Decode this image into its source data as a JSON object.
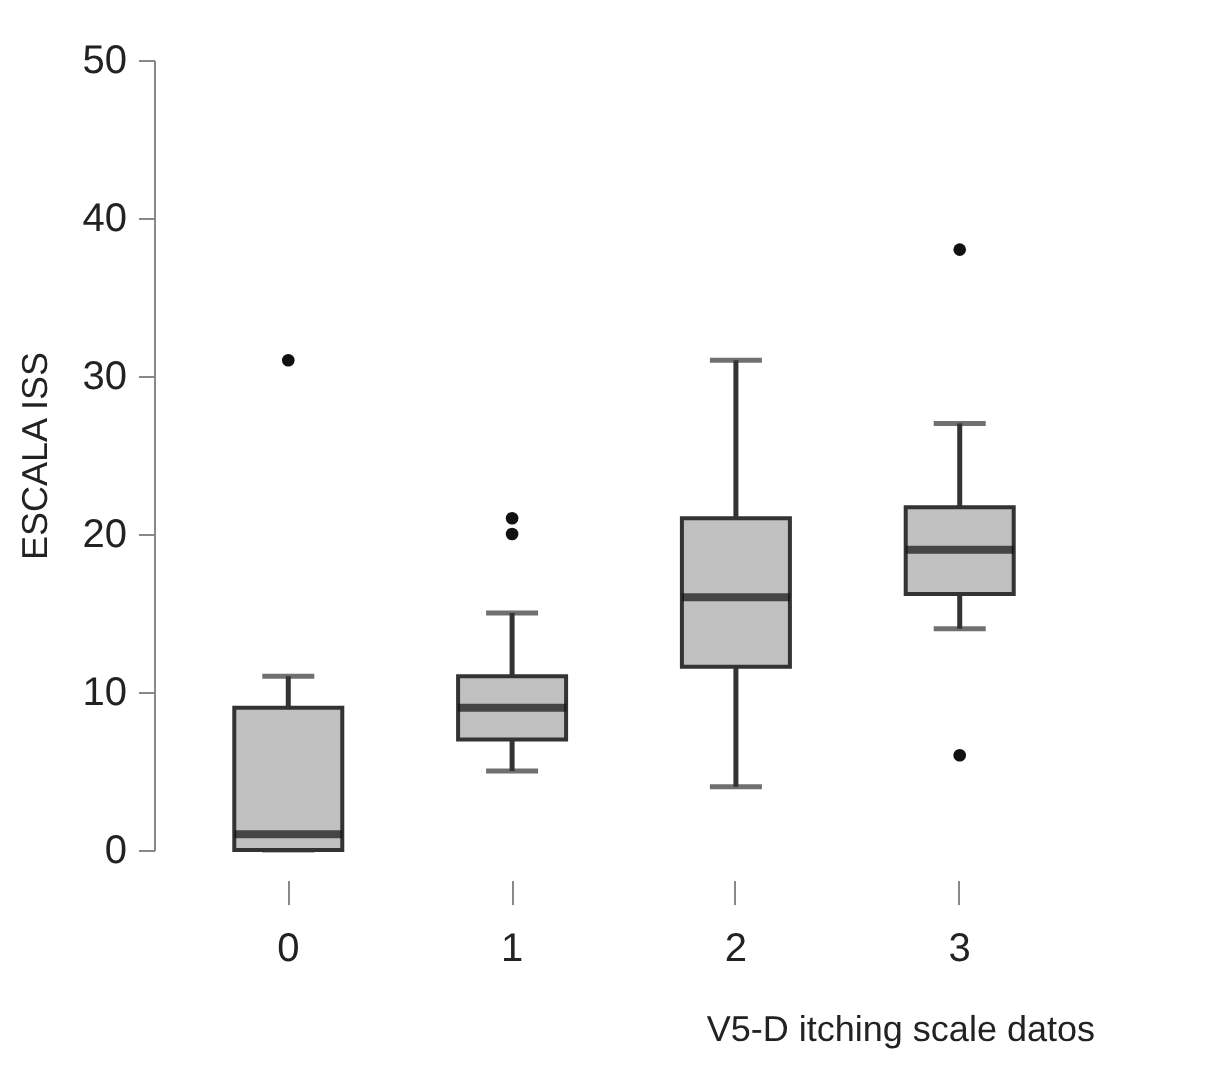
{
  "chart_data": {
    "type": "box",
    "xlabel": "V5-D itching scale datos",
    "ylabel": "ESCALA ISS",
    "categories": [
      "0",
      "1",
      "2",
      "3"
    ],
    "boxes": [
      {
        "low": 0,
        "q1": 0,
        "median": 1,
        "q3": 9,
        "high": 11,
        "outliers": [
          31
        ]
      },
      {
        "low": 5,
        "q1": 7,
        "median": 9,
        "q3": 11,
        "high": 15,
        "outliers": [
          20,
          21
        ]
      },
      {
        "low": 4,
        "q1": 11.6,
        "median": 16,
        "q3": 21,
        "high": 31
      },
      {
        "low": 14,
        "q1": 16.2,
        "median": 19,
        "q3": 21.7,
        "high": 27,
        "outliers": [
          38,
          6
        ]
      }
    ],
    "color": "#c0c0c0",
    "ylim": [
      0,
      50
    ],
    "yticks": [
      0,
      10,
      20,
      30,
      40,
      50
    ],
    "grid": false
  }
}
